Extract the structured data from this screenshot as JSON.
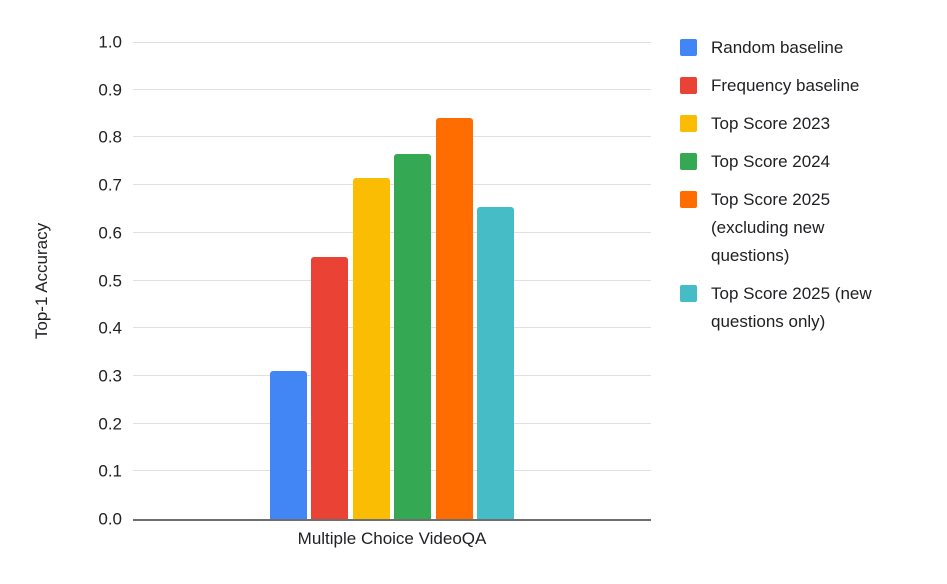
{
  "chart_data": {
    "type": "bar",
    "title": "",
    "categories": [
      "Multiple Choice VideoQA"
    ],
    "xlabel": "",
    "ylabel": "Top-1 Accuracy",
    "ylim": [
      0.0,
      1.0
    ],
    "ytick_step": 0.1,
    "yticks": [
      "0.0",
      "0.1",
      "0.2",
      "0.3",
      "0.4",
      "0.5",
      "0.6",
      "0.7",
      "0.8",
      "0.9",
      "1.0"
    ],
    "grid": true,
    "legend_position": "right",
    "axis_color": "#6e6e6e",
    "gridline_color": "#e0e0e0",
    "text_color": "#202124",
    "series": [
      {
        "name": "Random baseline",
        "legend_lines": [
          "Random baseline"
        ],
        "color": "#4285F4",
        "values": [
          0.31
        ]
      },
      {
        "name": "Frequency baseline",
        "legend_lines": [
          "Frequency baseline"
        ],
        "color": "#EA4335",
        "values": [
          0.55
        ]
      },
      {
        "name": "Top Score 2023",
        "legend_lines": [
          "Top Score 2023"
        ],
        "color": "#FBBC04",
        "values": [
          0.715
        ]
      },
      {
        "name": "Top Score 2024",
        "legend_lines": [
          "Top Score 2024"
        ],
        "color": "#34A853",
        "values": [
          0.765
        ]
      },
      {
        "name": "Top Score 2025 (excluding new questions)",
        "legend_lines": [
          "Top Score 2025",
          "(excluding new",
          "questions)"
        ],
        "color": "#FF6D01",
        "values": [
          0.84
        ]
      },
      {
        "name": "Top Score 2025 (new questions only)",
        "legend_lines": [
          "Top Score 2025 (new",
          "questions only)"
        ],
        "color": "#46BDC6",
        "values": [
          0.655
        ]
      }
    ]
  }
}
